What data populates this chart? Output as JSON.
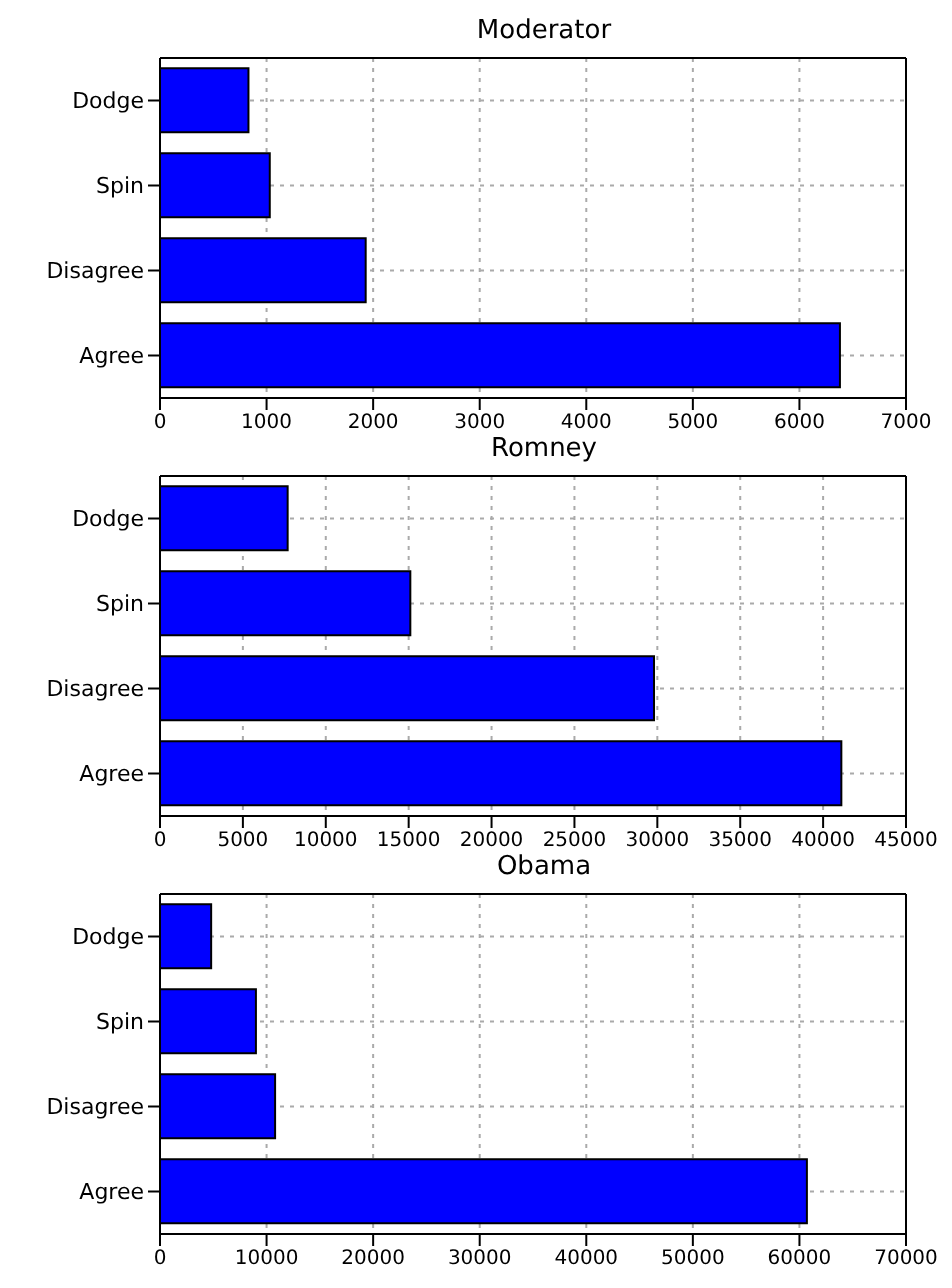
{
  "chart_data": [
    {
      "type": "bar",
      "orientation": "horizontal",
      "title": "Moderator",
      "categories": [
        "Dodge",
        "Spin",
        "Disagree",
        "Agree"
      ],
      "values": [
        830,
        1030,
        1930,
        6380
      ],
      "color": "#0000ff",
      "xlim": [
        0,
        7000
      ],
      "xticks": [
        0,
        1000,
        2000,
        3000,
        4000,
        5000,
        6000,
        7000
      ],
      "grid": true
    },
    {
      "type": "bar",
      "orientation": "horizontal",
      "title": "Romney",
      "categories": [
        "Dodge",
        "Spin",
        "Disagree",
        "Agree"
      ],
      "values": [
        7700,
        15100,
        29800,
        41100
      ],
      "color": "#0000ff",
      "xlim": [
        0,
        45000
      ],
      "xticks": [
        0,
        5000,
        10000,
        15000,
        20000,
        25000,
        30000,
        35000,
        40000,
        45000
      ],
      "grid": true
    },
    {
      "type": "bar",
      "orientation": "horizontal",
      "title": "Obama",
      "categories": [
        "Dodge",
        "Spin",
        "Disagree",
        "Agree"
      ],
      "values": [
        4800,
        9000,
        10800,
        60700
      ],
      "color": "#0000ff",
      "xlim": [
        0,
        70000
      ],
      "xticks": [
        0,
        10000,
        20000,
        30000,
        40000,
        50000,
        60000,
        70000
      ],
      "grid": true
    }
  ]
}
